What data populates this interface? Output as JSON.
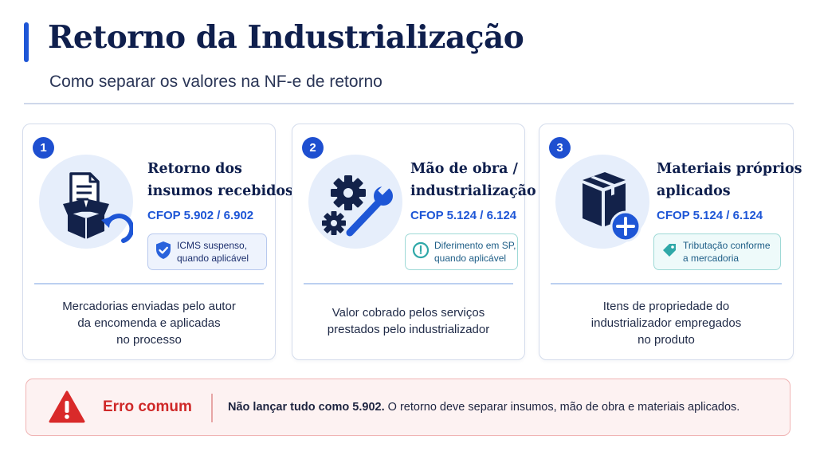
{
  "header": {
    "title": "Retorno da Industrialização",
    "subtitle": "Como separar os valores na NF-e de retorno"
  },
  "cards": [
    {
      "number": "1",
      "title_line1": "Retorno dos",
      "title_line2": "insumos recebidos",
      "cfop": "CFOP 5.902 / 6.902",
      "badge_line1": "ICMS suspenso,",
      "badge_line2": "quando aplicável",
      "badge_icon": "shield-check-icon",
      "illustration": "box-document-return-icon",
      "desc_lines": [
        "Mercadorias enviadas pelo autor",
        "da encomenda e aplicadas",
        "no processo"
      ]
    },
    {
      "number": "2",
      "title_line1": "Mão de obra /",
      "title_line2": "industrialização",
      "cfop": "CFOP 5.124 / 6.124",
      "badge_line1": "Diferimento em SP,",
      "badge_line2": "quando aplicável",
      "badge_icon": "clock-icon",
      "illustration": "gears-wrench-icon",
      "desc_lines": [
        "Valor cobrado pelos serviços",
        "prestados pelo industrializador"
      ]
    },
    {
      "number": "3",
      "title_line1": "Materiais próprios",
      "title_line2": "aplicados",
      "cfop": "CFOP 5.124 / 6.124",
      "badge_line1": "Tributação conforme",
      "badge_line2": "a mercadoria",
      "badge_icon": "tag-icon",
      "illustration": "box-plus-icon",
      "desc_lines": [
        "Itens de propriedade do",
        "industrializador empregados",
        "no produto"
      ]
    }
  ],
  "warning": {
    "label": "Erro comum",
    "text_bold": "Não lançar tudo como 5.902.",
    "text_rest": " O retorno deve separar insumos, mão de obra e materiais aplicados.",
    "icon": "warning-triangle-icon"
  },
  "colors": {
    "primary": "#1e56d6",
    "title": "#0f1f4d",
    "warning_red": "#cf2929",
    "teal": "#2fa8a8"
  }
}
